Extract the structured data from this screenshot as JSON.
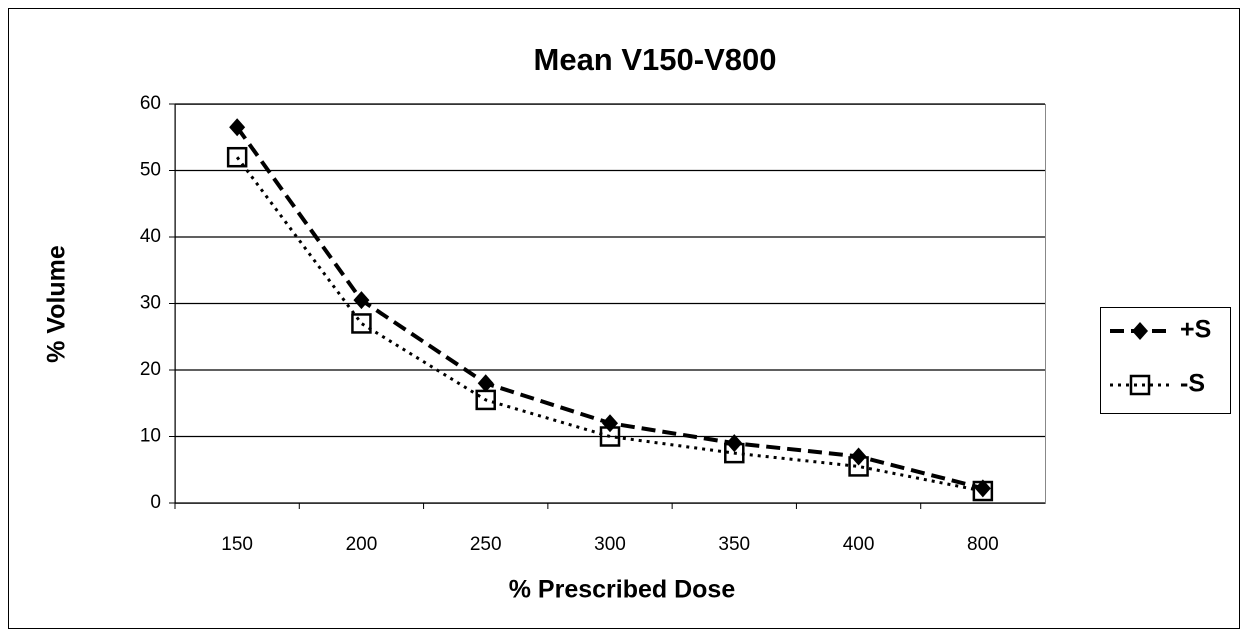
{
  "chart_data": {
    "type": "line",
    "title": "Mean V150-V800",
    "x_label": "% Prescribed Dose",
    "y_label": "% Volume",
    "categories": [
      "150",
      "200",
      "250",
      "300",
      "350",
      "400",
      "800"
    ],
    "series": [
      {
        "name": "+S",
        "color": "#000000",
        "values": [
          56.5,
          30.5,
          18,
          12,
          9,
          7,
          2.2
        ]
      },
      {
        "name": "-S",
        "color": "#000000",
        "values": [
          52,
          27,
          15.5,
          10,
          7.5,
          5.5,
          1.8
        ]
      }
    ],
    "ylim": [
      0,
      60
    ],
    "yticks": [
      0,
      10,
      20,
      30,
      40,
      50,
      60
    ],
    "grid": true,
    "legend": "right"
  }
}
